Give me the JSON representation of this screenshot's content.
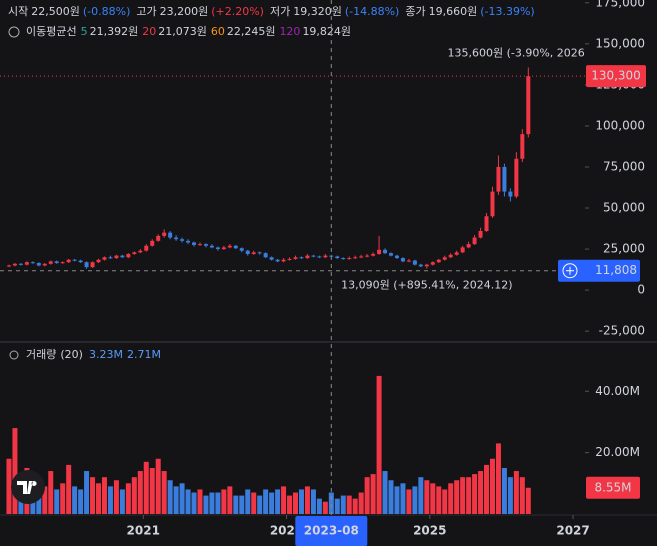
{
  "header": {
    "ohlc": [
      {
        "label": "시작",
        "value": "22,500원",
        "change": "(-0.88%)"
      },
      {
        "label": "고가",
        "value": "23,200원",
        "change": "(+2.20%)"
      },
      {
        "label": "저가",
        "value": "19,320원",
        "change": "(-14.88%)"
      },
      {
        "label": "종가",
        "value": "19,660원",
        "change": "(-13.39%)"
      }
    ],
    "ma_title": "이동평균선",
    "ma": [
      {
        "period": 5,
        "value": "21,392원",
        "color": "#26a69a"
      },
      {
        "period": 20,
        "value": "21,073원",
        "color": "#f23645"
      },
      {
        "period": 60,
        "value": "22,245원",
        "color": "#f7931a"
      },
      {
        "period": 120,
        "value": "19,824원",
        "color": "#9c27b0"
      }
    ]
  },
  "chart_data": [
    {
      "type": "candlestick",
      "up_color": "#f23645",
      "down_color": "#3b7ddd",
      "categories": [
        "2019-02",
        "2019-03",
        "2019-04",
        "2019-05",
        "2019-06",
        "2019-07",
        "2019-08",
        "2019-09",
        "2019-10",
        "2019-11",
        "2019-12",
        "2020-01",
        "2020-02",
        "2020-03",
        "2020-04",
        "2020-05",
        "2020-06",
        "2020-07",
        "2020-08",
        "2020-09",
        "2020-10",
        "2020-11",
        "2020-12",
        "2021-01",
        "2021-02",
        "2021-03",
        "2021-04",
        "2021-05",
        "2021-06",
        "2021-07",
        "2021-08",
        "2021-09",
        "2021-10",
        "2021-11",
        "2021-12",
        "2022-01",
        "2022-02",
        "2022-03",
        "2022-04",
        "2022-05",
        "2022-06",
        "2022-07",
        "2022-08",
        "2022-09",
        "2022-10",
        "2022-11",
        "2022-12",
        "2023-01",
        "2023-02",
        "2023-03",
        "2023-04",
        "2023-05",
        "2023-06",
        "2023-07",
        "2023-08",
        "2023-09",
        "2023-10",
        "2023-11",
        "2023-12",
        "2024-01",
        "2024-02",
        "2024-03",
        "2024-04",
        "2024-05",
        "2024-06",
        "2024-07",
        "2024-08",
        "2024-09",
        "2024-10",
        "2024-11",
        "2024-12",
        "2025-01",
        "2025-02",
        "2025-03",
        "2025-04",
        "2025-05",
        "2025-06",
        "2025-07",
        "2025-08",
        "2025-09",
        "2025-10",
        "2025-11",
        "2025-12",
        "2026-01",
        "2026-02",
        "2026-03",
        "2026-04",
        "2026-05"
      ],
      "candles": [
        [
          14500,
          15500,
          14000,
          15000
        ],
        [
          15000,
          16500,
          14500,
          16000
        ],
        [
          16000,
          16500,
          15000,
          15500
        ],
        [
          15500,
          17500,
          15000,
          17000
        ],
        [
          17000,
          17500,
          16000,
          16500
        ],
        [
          16500,
          17000,
          14500,
          15000
        ],
        [
          15000,
          16500,
          14500,
          16000
        ],
        [
          16000,
          18000,
          15500,
          17500
        ],
        [
          17500,
          18000,
          16000,
          16500
        ],
        [
          16500,
          17500,
          16000,
          17000
        ],
        [
          17000,
          19000,
          16500,
          18500
        ],
        [
          18500,
          19000,
          17500,
          18000
        ],
        [
          18000,
          18500,
          16500,
          17000
        ],
        [
          17000,
          17500,
          13000,
          14000
        ],
        [
          14000,
          17500,
          13500,
          17000
        ],
        [
          17000,
          19000,
          16500,
          18500
        ],
        [
          18500,
          20500,
          18000,
          20000
        ],
        [
          20000,
          21000,
          19000,
          19500
        ],
        [
          19500,
          21500,
          19000,
          21000
        ],
        [
          21000,
          21500,
          19500,
          20000
        ],
        [
          20000,
          22500,
          19500,
          22000
        ],
        [
          22000,
          23500,
          21500,
          23000
        ],
        [
          23000,
          25000,
          22500,
          24000
        ],
        [
          24000,
          28000,
          23500,
          27000
        ],
        [
          27000,
          31000,
          26500,
          30000
        ],
        [
          30000,
          34000,
          29500,
          33000
        ],
        [
          33000,
          37000,
          32000,
          35000
        ],
        [
          35000,
          36000,
          31000,
          32000
        ],
        [
          32000,
          33500,
          30000,
          31000
        ],
        [
          31000,
          32000,
          29000,
          30000
        ],
        [
          30000,
          31000,
          28000,
          29000
        ],
        [
          29000,
          29500,
          26500,
          27500
        ],
        [
          27500,
          29000,
          27000,
          28000
        ],
        [
          28000,
          28500,
          26000,
          27000
        ],
        [
          27000,
          28000,
          25500,
          26000
        ],
        [
          26000,
          26500,
          24000,
          25000
        ],
        [
          25000,
          27000,
          24500,
          26000
        ],
        [
          26000,
          28000,
          25500,
          27000
        ],
        [
          27000,
          27500,
          25000,
          25500
        ],
        [
          25500,
          26000,
          23000,
          24000
        ],
        [
          24000,
          24500,
          21000,
          22000
        ],
        [
          22000,
          24000,
          21500,
          23000
        ],
        [
          23000,
          23500,
          21500,
          22500
        ],
        [
          22500,
          23000,
          19500,
          20000
        ],
        [
          20000,
          20500,
          18000,
          18500
        ],
        [
          18500,
          19000,
          17000,
          17500
        ],
        [
          17500,
          19500,
          17000,
          18500
        ],
        [
          18500,
          20000,
          18000,
          19000
        ],
        [
          19000,
          21000,
          18500,
          20000
        ],
        [
          20000,
          20500,
          19000,
          19500
        ],
        [
          19500,
          22000,
          19000,
          21000
        ],
        [
          21000,
          21500,
          20000,
          20500
        ],
        [
          20500,
          21000,
          19500,
          20000
        ],
        [
          20000,
          22000,
          19500,
          21000
        ],
        [
          21000,
          21500,
          19500,
          20500
        ],
        [
          20500,
          21000,
          19000,
          19500
        ],
        [
          19500,
          20000,
          18500,
          19000
        ],
        [
          19000,
          20500,
          18500,
          19500
        ],
        [
          19500,
          21000,
          19000,
          20000
        ],
        [
          20000,
          21500,
          19500,
          20500
        ],
        [
          20500,
          22000,
          20000,
          21000
        ],
        [
          21000,
          23000,
          20500,
          22000
        ],
        [
          22000,
          33000,
          21500,
          24500
        ],
        [
          24500,
          25500,
          22000,
          22500
        ],
        [
          22500,
          23000,
          20500,
          21000
        ],
        [
          21000,
          21500,
          19000,
          19500
        ],
        [
          19500,
          20000,
          17000,
          17500
        ],
        [
          17500,
          19000,
          17000,
          18000
        ],
        [
          18000,
          18500,
          15000,
          15500
        ],
        [
          15500,
          16000,
          14000,
          14500
        ],
        [
          14500,
          16000,
          13090,
          15500
        ],
        [
          15500,
          17500,
          15000,
          17000
        ],
        [
          17000,
          19000,
          16500,
          18500
        ],
        [
          18500,
          21000,
          18000,
          20000
        ],
        [
          20000,
          22500,
          19500,
          21500
        ],
        [
          21500,
          24000,
          21000,
          23000
        ],
        [
          23000,
          27000,
          22500,
          26000
        ],
        [
          26000,
          29500,
          25500,
          28000
        ],
        [
          28000,
          33500,
          27500,
          32000
        ],
        [
          32000,
          38000,
          31500,
          36000
        ],
        [
          36000,
          47000,
          35500,
          45000
        ],
        [
          45000,
          63000,
          44000,
          60000
        ],
        [
          60000,
          82000,
          58000,
          75000
        ],
        [
          75000,
          77000,
          57000,
          60000
        ],
        [
          60000,
          62000,
          54000,
          57000
        ],
        [
          57000,
          84000,
          56000,
          80000
        ],
        [
          80000,
          98000,
          78000,
          95000
        ],
        [
          95000,
          135600,
          93000,
          130300
        ]
      ],
      "xlim": [
        "2019-01",
        "2027-03"
      ],
      "xticks": [
        {
          "value": "2021-01",
          "label": "2021"
        },
        {
          "value": "2023-01",
          "label": "2023"
        },
        {
          "value": "2025-01",
          "label": "2025"
        },
        {
          "value": "2027-01",
          "label": "2027"
        }
      ],
      "ylim": [
        -31000,
        176700
      ],
      "yticks": [
        {
          "value": -25000,
          "label": "-25,000"
        },
        0,
        {
          "value": 25000,
          "label": "25,000"
        },
        {
          "value": 50000,
          "label": "50,000"
        },
        {
          "value": 75000,
          "label": "75,000"
        },
        {
          "value": 100000,
          "label": "100,000"
        },
        {
          "value": 125000,
          "label": "125,000"
        },
        {
          "value": 150000,
          "label": "150,000"
        },
        {
          "value": 175000,
          "label": "175,000"
        }
      ],
      "last_price": {
        "value": 130300,
        "label": "130,300"
      },
      "crosshair": {
        "value": 11808,
        "label": "11,808",
        "date": "2023-08"
      },
      "high_annotation": "135,600원 (-3.90%, 2026.",
      "low_annotation": "13,090원 (+895.41%, 2024.12)"
    },
    {
      "type": "bar",
      "title": "거래량",
      "period": "(20)",
      "legend_values": [
        "3.23M",
        "2.71M"
      ],
      "values": [
        18000000,
        28000000,
        12000000,
        15000000,
        10000000,
        8000000,
        9000000,
        14000000,
        8000000,
        10000000,
        16000000,
        9000000,
        8000000,
        14000000,
        12000000,
        10000000,
        12000000,
        9000000,
        11000000,
        8000000,
        10000000,
        12000000,
        14000000,
        17000000,
        15000000,
        18000000,
        14000000,
        11000000,
        9000000,
        10000000,
        8000000,
        7000000,
        8000000,
        6000000,
        7000000,
        7000000,
        8000000,
        9000000,
        6000000,
        6000000,
        8000000,
        7000000,
        6000000,
        8000000,
        7000000,
        8000000,
        9000000,
        6000000,
        7000000,
        8000000,
        9000000,
        8000000,
        5000000,
        4000000,
        7000000,
        5000000,
        6000000,
        6000000,
        5000000,
        7000000,
        12000000,
        13000000,
        45000000,
        14000000,
        11000000,
        9000000,
        10000000,
        8000000,
        9000000,
        12000000,
        11000000,
        10000000,
        9000000,
        8000000,
        10000000,
        11000000,
        12000000,
        12000000,
        13000000,
        14000000,
        16000000,
        18000000,
        23000000,
        15000000,
        12000000,
        14000000,
        12000000,
        8550000
      ],
      "ylim": [
        0,
        55400000
      ],
      "yticks": [
        {
          "value": 20000000,
          "label": "20.00M"
        },
        {
          "value": 40000000,
          "label": "40.00M"
        }
      ],
      "last_value": {
        "value": 8550000,
        "label": "8.55M"
      }
    }
  ]
}
